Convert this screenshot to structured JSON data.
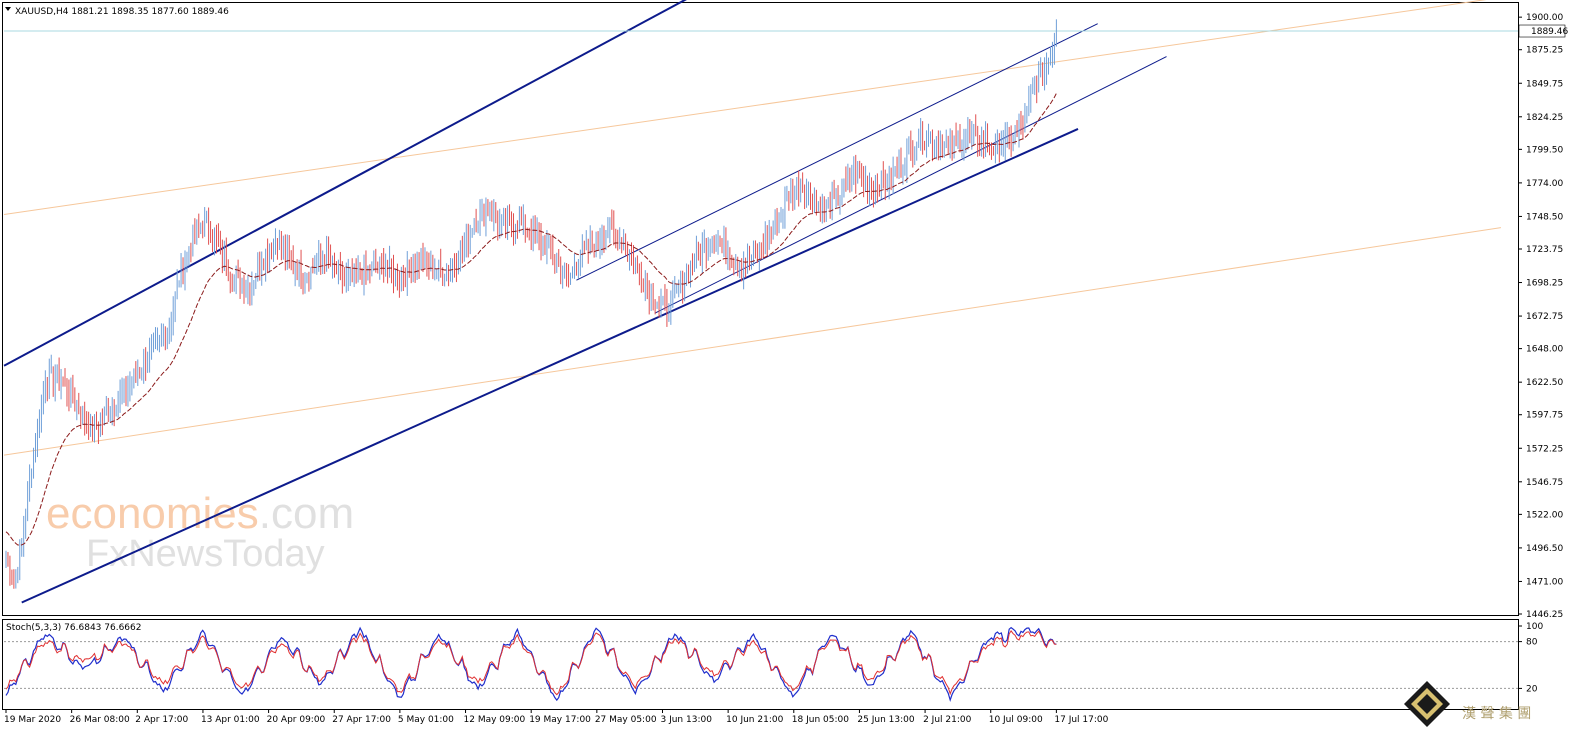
{
  "header": {
    "symbol_line": "XAUUSD,H4  1881.21 1898.35 1877.60 1889.46",
    "stoch_line": "Stoch(5,3,3) 76.6843 76.6662"
  },
  "colors": {
    "bull": "#6f9fd8",
    "bear": "#e05050",
    "ma": "#8b1a1a",
    "channel": "#0d1b8c",
    "fib": "#f6c79b",
    "stoch_main": "#1f2ecc",
    "stoch_signal": "#e03030",
    "price_line": "#a8d8e0"
  },
  "chart_data": [
    {
      "type": "candlestick",
      "symbol": "XAUUSD",
      "timeframe": "H4",
      "ohlc_last": {
        "open": 1881.21,
        "high": 1898.35,
        "low": 1877.6,
        "close": 1889.46
      },
      "current_price_label": "1889.46",
      "y_ticks": [
        "1900.00",
        "1875.25",
        "1849.75",
        "1824.25",
        "1799.50",
        "1774.00",
        "1748.50",
        "1723.75",
        "1698.25",
        "1672.75",
        "1648.00",
        "1622.50",
        "1597.75",
        "1572.25",
        "1546.75",
        "1522.00",
        "1496.50",
        "1471.00",
        "1446.25"
      ],
      "ylim": [
        1446.25,
        1910
      ],
      "x_ticks": [
        "19 Mar 2020",
        "26 Mar 08:00",
        "2 Apr 17:00",
        "13 Apr 01:00",
        "20 Apr 09:00",
        "27 Apr 17:00",
        "5 May 01:00",
        "12 May 09:00",
        "19 May 17:00",
        "27 May 05:00",
        "3 Jun 13:00",
        "10 Jun 21:00",
        "18 Jun 05:00",
        "25 Jun 13:00",
        "2 Jul 21:00",
        "10 Jul 09:00",
        "17 Jul 17:00"
      ],
      "key_closes": [
        [
          0,
          1490
        ],
        [
          4,
          1470
        ],
        [
          8,
          1500
        ],
        [
          14,
          1570
        ],
        [
          20,
          1625
        ],
        [
          28,
          1625
        ],
        [
          36,
          1605
        ],
        [
          44,
          1585
        ],
        [
          52,
          1600
        ],
        [
          62,
          1620
        ],
        [
          72,
          1640
        ],
        [
          82,
          1660
        ],
        [
          88,
          1700
        ],
        [
          96,
          1735
        ],
        [
          102,
          1745
        ],
        [
          110,
          1720
        ],
        [
          116,
          1700
        ],
        [
          124,
          1695
        ],
        [
          130,
          1715
        ],
        [
          138,
          1732
        ],
        [
          146,
          1710
        ],
        [
          154,
          1705
        ],
        [
          162,
          1718
        ],
        [
          172,
          1700
        ],
        [
          182,
          1705
        ],
        [
          192,
          1712
        ],
        [
          200,
          1700
        ],
        [
          210,
          1715
        ],
        [
          222,
          1705
        ],
        [
          232,
          1720
        ],
        [
          238,
          1745
        ],
        [
          246,
          1755
        ],
        [
          252,
          1738
        ],
        [
          260,
          1745
        ],
        [
          268,
          1735
        ],
        [
          276,
          1725
        ],
        [
          286,
          1700
        ],
        [
          292,
          1720
        ],
        [
          300,
          1728
        ],
        [
          306,
          1740
        ],
        [
          314,
          1728
        ],
        [
          322,
          1705
        ],
        [
          328,
          1690
        ],
        [
          336,
          1675
        ],
        [
          344,
          1700
        ],
        [
          352,
          1720
        ],
        [
          360,
          1735
        ],
        [
          366,
          1722
        ],
        [
          374,
          1710
        ],
        [
          382,
          1720
        ],
        [
          390,
          1738
        ],
        [
          398,
          1765
        ],
        [
          404,
          1775
        ],
        [
          410,
          1760
        ],
        [
          416,
          1752
        ],
        [
          424,
          1765
        ],
        [
          432,
          1782
        ],
        [
          440,
          1770
        ],
        [
          448,
          1775
        ],
        [
          456,
          1790
        ],
        [
          464,
          1810
        ],
        [
          472,
          1805
        ],
        [
          480,
          1800
        ],
        [
          488,
          1810
        ],
        [
          496,
          1808
        ],
        [
          502,
          1800
        ],
        [
          506,
          1805
        ],
        [
          512,
          1808
        ],
        [
          518,
          1820
        ],
        [
          522,
          1848
        ],
        [
          528,
          1860
        ],
        [
          532,
          1875
        ],
        [
          534,
          1889
        ]
      ],
      "moving_average_start": 1510,
      "channels": [
        {
          "name": "",
          "from": [
            -1,
            1635
          ],
          "to": [
            360,
            1925
          ]
        },
        {
          "name": "",
          "from": [
            8,
            1455
          ],
          "to": [
            545,
            1815
          ]
        },
        {
          "name": "",
          "from": [
            290,
            1700
          ],
          "to": [
            555,
            1895
          ]
        },
        {
          "name": "",
          "from": [
            330,
            1675
          ],
          "to": [
            590,
            1870
          ]
        }
      ],
      "fib_lines": [
        {
          "from": [
            -1,
            1750
          ],
          "to": [
            760,
            1915
          ]
        },
        {
          "from": [
            -1,
            1567
          ],
          "to": [
            760,
            1740
          ]
        }
      ]
    },
    {
      "type": "line",
      "name": "Stoch(5,3,3)",
      "main_last": 76.6843,
      "signal_last": 76.6662,
      "ylim": [
        0,
        100
      ],
      "y_ticks": [
        "100",
        "80",
        "20"
      ],
      "levels": [
        80,
        20
      ],
      "samples": [
        {
          "x": 0,
          "main": 12,
          "signal": 20
        },
        {
          "x": 20,
          "main": 90,
          "signal": 80
        },
        {
          "x": 40,
          "main": 45,
          "signal": 55
        },
        {
          "x": 60,
          "main": 85,
          "signal": 78
        },
        {
          "x": 80,
          "main": 15,
          "signal": 25
        },
        {
          "x": 100,
          "main": 92,
          "signal": 85
        },
        {
          "x": 120,
          "main": 10,
          "signal": 18
        },
        {
          "x": 140,
          "main": 88,
          "signal": 80
        },
        {
          "x": 160,
          "main": 25,
          "signal": 30
        },
        {
          "x": 180,
          "main": 95,
          "signal": 88
        },
        {
          "x": 200,
          "main": 8,
          "signal": 15
        },
        {
          "x": 220,
          "main": 90,
          "signal": 84
        },
        {
          "x": 240,
          "main": 20,
          "signal": 28
        },
        {
          "x": 260,
          "main": 93,
          "signal": 86
        },
        {
          "x": 280,
          "main": 5,
          "signal": 12
        },
        {
          "x": 300,
          "main": 96,
          "signal": 90
        },
        {
          "x": 320,
          "main": 15,
          "signal": 22
        },
        {
          "x": 340,
          "main": 90,
          "signal": 84
        },
        {
          "x": 360,
          "main": 30,
          "signal": 38
        },
        {
          "x": 380,
          "main": 88,
          "signal": 80
        },
        {
          "x": 400,
          "main": 10,
          "signal": 18
        },
        {
          "x": 420,
          "main": 90,
          "signal": 84
        },
        {
          "x": 440,
          "main": 22,
          "signal": 30
        },
        {
          "x": 460,
          "main": 92,
          "signal": 86
        },
        {
          "x": 480,
          "main": 8,
          "signal": 16
        },
        {
          "x": 500,
          "main": 85,
          "signal": 78
        },
        {
          "x": 520,
          "main": 95,
          "signal": 90
        },
        {
          "x": 534,
          "main": 76.68,
          "signal": 76.67
        }
      ]
    }
  ],
  "watermark": {
    "line1a": "economies",
    "line1b": ".com",
    "line2": "FxNewsToday"
  },
  "logo": {
    "cn": "漢 聲 集 團"
  }
}
